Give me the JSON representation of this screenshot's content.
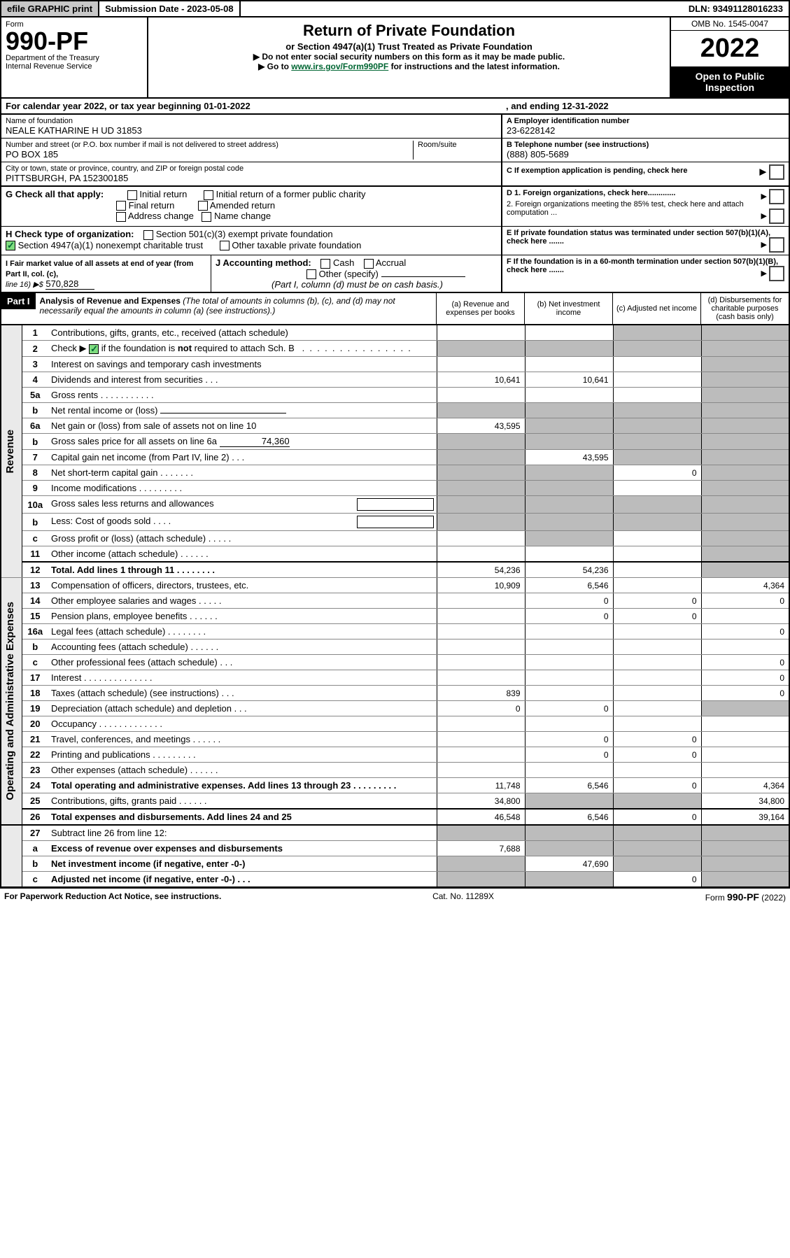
{
  "topbar": {
    "efile": "efile GRAPHIC print",
    "submission_label": "Submission Date - 2023-05-08",
    "dln": "DLN: 93491128016233"
  },
  "header": {
    "form_word": "Form",
    "form_num": "990-PF",
    "dept": "Department of the Treasury",
    "irs": "Internal Revenue Service",
    "title": "Return of Private Foundation",
    "subtitle": "or Section 4947(a)(1) Trust Treated as Private Foundation",
    "instr1": "▶ Do not enter social security numbers on this form as it may be made public.",
    "instr2_pre": "▶ Go to ",
    "instr2_link": "www.irs.gov/Form990PF",
    "instr2_post": " for instructions and the latest information.",
    "omb": "OMB No. 1545-0047",
    "year": "2022",
    "open": "Open to Public Inspection"
  },
  "calendar": {
    "text": "For calendar year 2022, or tax year beginning 01-01-2022",
    "ending": ", and ending 12-31-2022"
  },
  "identity": {
    "name_label": "Name of foundation",
    "name": "NEALE KATHARINE H UD 31853",
    "addr_label": "Number and street (or P.O. box number if mail is not delivered to street address)",
    "addr": "PO BOX 185",
    "room_label": "Room/suite",
    "city_label": "City or town, state or province, country, and ZIP or foreign postal code",
    "city": "PITTSBURGH, PA  152300185",
    "ein_label": "A Employer identification number",
    "ein": "23-6228142",
    "phone_label": "B Telephone number (see instructions)",
    "phone": "(888) 805-5689",
    "c_label": "C If exemption application is pending, check here"
  },
  "checks": {
    "g_label": "G Check all that apply:",
    "g_opts": [
      "Initial return",
      "Initial return of a former public charity",
      "Final return",
      "Amended return",
      "Address change",
      "Name change"
    ],
    "h_label": "H Check type of organization:",
    "h_501": "Section 501(c)(3) exempt private foundation",
    "h_4947": "Section 4947(a)(1) nonexempt charitable trust",
    "h_other": "Other taxable private foundation",
    "d1": "D 1. Foreign organizations, check here.............",
    "d2": "2. Foreign organizations meeting the 85% test, check here and attach computation ...",
    "e": "E  If private foundation status was terminated under section 507(b)(1)(A), check here .......",
    "f": "F  If the foundation is in a 60-month termination under section 507(b)(1)(B), check here .......",
    "i_label": "I Fair market value of all assets at end of year (from Part II, col. (c),",
    "i_line": "line 16) ▶$",
    "i_val": "570,828",
    "j_label": "J Accounting method:",
    "j_cash": "Cash",
    "j_accrual": "Accrual",
    "j_other": "Other (specify)",
    "j_note": "(Part I, column (d) must be on cash basis.)"
  },
  "part1": {
    "label": "Part I",
    "title": "Analysis of Revenue and Expenses",
    "note": "(The total of amounts in columns (b), (c), and (d) may not necessarily equal the amounts in column (a) (see instructions).)",
    "col_a": "(a)   Revenue and expenses per books",
    "col_b": "(b)    Net investment income",
    "col_c": "(c)   Adjusted net income",
    "col_d": "(d)  Disbursements for charitable purposes (cash basis only)"
  },
  "sections": {
    "revenue": "Revenue",
    "opex": "Operating and Administrative Expenses"
  },
  "lines": [
    {
      "n": "1",
      "t": "Contributions, gifts, grants, etc., received (attach schedule)",
      "a": "",
      "b": "",
      "c": "s",
      "d": "s"
    },
    {
      "n": "2",
      "t": "Check ▶ ☑ if the foundation is not required to attach Sch. B   .  .  .  .  .  .  .  .  .  .  .  .  .  .  .  .",
      "a": "s",
      "b": "s",
      "c": "s",
      "d": "s",
      "chk": true
    },
    {
      "n": "3",
      "t": "Interest on savings and temporary cash investments",
      "a": "",
      "b": "",
      "c": "",
      "d": "s"
    },
    {
      "n": "4",
      "t": "Dividends and interest from securities     .    .    .",
      "a": "10,641",
      "b": "10,641",
      "c": "",
      "d": "s"
    },
    {
      "n": "5a",
      "t": "Gross rents      .    .    .    .    .    .    .    .    .    .    .",
      "a": "",
      "b": "",
      "c": "",
      "d": "s"
    },
    {
      "n": "b",
      "t": "Net rental income or (loss)  ",
      "a": "s",
      "b": "s",
      "c": "s",
      "d": "s",
      "under": true
    },
    {
      "n": "6a",
      "t": "Net gain or (loss) from sale of assets not on line 10",
      "a": "43,595",
      "b": "s",
      "c": "s",
      "d": "s"
    },
    {
      "n": "b",
      "t": "Gross sales price for all assets on line 6a",
      "a": "s",
      "b": "s",
      "c": "s",
      "d": "s",
      "inline": "74,360"
    },
    {
      "n": "7",
      "t": "Capital gain net income (from Part IV, line 2)    .    .    .",
      "a": "s",
      "b": "43,595",
      "c": "s",
      "d": "s"
    },
    {
      "n": "8",
      "t": "Net short-term capital gain   .    .    .    .    .    .    .",
      "a": "s",
      "b": "s",
      "c": "0",
      "d": "s"
    },
    {
      "n": "9",
      "t": "Income modifications  .    .    .    .    .    .    .    .    .",
      "a": "s",
      "b": "s",
      "c": "",
      "d": "s"
    },
    {
      "n": "10a",
      "t": "Gross sales less returns and allowances",
      "a": "s",
      "b": "s",
      "c": "s",
      "d": "s",
      "box": true
    },
    {
      "n": "b",
      "t": "Less: Cost of goods sold     .    .    .    .",
      "a": "s",
      "b": "s",
      "c": "s",
      "d": "s",
      "box": true
    },
    {
      "n": "c",
      "t": "Gross profit or (loss) (attach schedule)     .    .    .    .    .",
      "a": "",
      "b": "s",
      "c": "",
      "d": "s"
    },
    {
      "n": "11",
      "t": "Other income (attach schedule)    .    .    .    .    .    .",
      "a": "",
      "b": "",
      "c": "",
      "d": "s"
    },
    {
      "n": "12",
      "t": "Total. Add lines 1 through 11   .    .    .    .    .    .    .    .",
      "a": "54,236",
      "b": "54,236",
      "c": "",
      "d": "s",
      "bold": true,
      "sec": true
    }
  ],
  "oplines": [
    {
      "n": "13",
      "t": "Compensation of officers, directors, trustees, etc.",
      "a": "10,909",
      "b": "6,546",
      "c": "",
      "d": "4,364"
    },
    {
      "n": "14",
      "t": "Other employee salaries and wages    .    .    .    .    .",
      "a": "",
      "b": "0",
      "c": "0",
      "d": "0"
    },
    {
      "n": "15",
      "t": "Pension plans, employee benefits  .    .    .    .    .    .",
      "a": "",
      "b": "0",
      "c": "0",
      "d": ""
    },
    {
      "n": "16a",
      "t": "Legal fees (attach schedule) .    .    .    .    .    .    .    .",
      "a": "",
      "b": "",
      "c": "",
      "d": "0"
    },
    {
      "n": "b",
      "t": "Accounting fees (attach schedule)  .    .    .    .    .    .",
      "a": "",
      "b": "",
      "c": "",
      "d": ""
    },
    {
      "n": "c",
      "t": "Other professional fees (attach schedule)    .    .    .",
      "a": "",
      "b": "",
      "c": "",
      "d": "0"
    },
    {
      "n": "17",
      "t": "Interest  .    .    .    .    .    .    .    .    .    .    .    .    .    .",
      "a": "",
      "b": "",
      "c": "",
      "d": "0"
    },
    {
      "n": "18",
      "t": "Taxes (attach schedule) (see instructions)     .    .    .",
      "a": "839",
      "b": "",
      "c": "",
      "d": "0"
    },
    {
      "n": "19",
      "t": "Depreciation (attach schedule) and depletion    .    .    .",
      "a": "0",
      "b": "0",
      "c": "",
      "d": "s"
    },
    {
      "n": "20",
      "t": "Occupancy .    .    .    .    .    .    .    .    .    .    .    .    .",
      "a": "",
      "b": "",
      "c": "",
      "d": ""
    },
    {
      "n": "21",
      "t": "Travel, conferences, and meetings .    .    .    .    .    .",
      "a": "",
      "b": "0",
      "c": "0",
      "d": ""
    },
    {
      "n": "22",
      "t": "Printing and publications .    .    .    .    .    .    .    .    .",
      "a": "",
      "b": "0",
      "c": "0",
      "d": ""
    },
    {
      "n": "23",
      "t": "Other expenses (attach schedule)  .    .    .    .    .    .",
      "a": "",
      "b": "",
      "c": "",
      "d": ""
    },
    {
      "n": "24",
      "t": "Total operating and administrative expenses. Add lines 13 through 23   .    .    .    .    .    .    .    .    .",
      "a": "11,748",
      "b": "6,546",
      "c": "0",
      "d": "4,364",
      "bold": true
    },
    {
      "n": "25",
      "t": "Contributions, gifts, grants paid     .    .    .    .    .    .",
      "a": "34,800",
      "b": "s",
      "c": "s",
      "d": "34,800"
    },
    {
      "n": "26",
      "t": "Total expenses and disbursements. Add lines 24 and 25",
      "a": "46,548",
      "b": "6,546",
      "c": "0",
      "d": "39,164",
      "bold": true,
      "sec": true
    }
  ],
  "netlines": [
    {
      "n": "27",
      "t": "Subtract line 26 from line 12:",
      "a": "s",
      "b": "s",
      "c": "s",
      "d": "s"
    },
    {
      "n": "a",
      "t": "Excess of revenue over expenses and disbursements",
      "a": "7,688",
      "b": "s",
      "c": "s",
      "d": "s",
      "bold": true
    },
    {
      "n": "b",
      "t": "Net investment income (if negative, enter -0-)",
      "a": "s",
      "b": "47,690",
      "c": "s",
      "d": "s",
      "bold": true
    },
    {
      "n": "c",
      "t": "Adjusted net income (if negative, enter -0-)    .    .    .",
      "a": "s",
      "b": "s",
      "c": "0",
      "d": "s",
      "bold": true
    }
  ],
  "footer": {
    "left": "For Paperwork Reduction Act Notice, see instructions.",
    "center": "Cat. No. 11289X",
    "right": "Form 990-PF (2022)"
  }
}
